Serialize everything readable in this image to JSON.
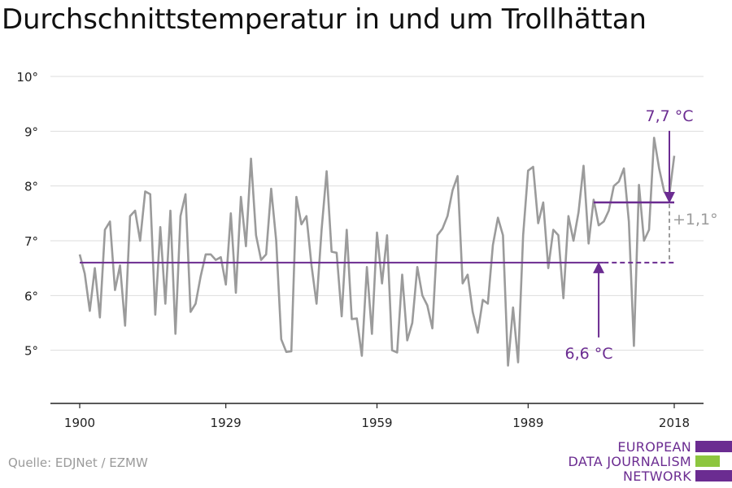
{
  "title": "Durchschnittstemperatur in und um Trollhättan",
  "source": "Quelle: EDJNet / EZMW",
  "logo": {
    "lines": [
      "EUROPEAN",
      "DATA JOURNALISM",
      "NETWORK"
    ],
    "colors": [
      "#6b2c91",
      "#8dc63f",
      "#6b2c91"
    ]
  },
  "colors": {
    "series": "#9b9b9b",
    "accent": "#6b2c91",
    "delta": "#9b9b9b",
    "grid": "#dddddd",
    "axis": "#222222"
  },
  "chart_data": {
    "type": "line",
    "x_tick_labels": [
      "1900",
      "1929",
      "1959",
      "1989",
      "2018"
    ],
    "x_ticks": [
      1900,
      1929,
      1959,
      1989,
      2018
    ],
    "y_tick_labels": [
      "5°",
      "6°",
      "7°",
      "8°",
      "9°",
      "10°"
    ],
    "y_ticks": [
      5,
      6,
      7,
      8,
      9,
      10
    ],
    "xlim": [
      1900,
      2018
    ],
    "ylim": [
      4.0,
      10.0
    ],
    "grid": true,
    "series": [
      {
        "x": [
          1900,
          1901,
          1902,
          1903,
          1904,
          1905,
          1906,
          1907,
          1908,
          1909,
          1910,
          1911,
          1912,
          1913,
          1914,
          1915,
          1916,
          1917,
          1918,
          1919,
          1920,
          1921,
          1922,
          1923,
          1924,
          1925,
          1926,
          1927,
          1928,
          1929,
          1930,
          1931,
          1932,
          1933,
          1934,
          1935,
          1936,
          1937,
          1938,
          1939,
          1940,
          1941,
          1942,
          1943,
          1944,
          1945,
          1946,
          1947,
          1948,
          1949,
          1950,
          1951,
          1952,
          1953,
          1954,
          1955,
          1956,
          1957,
          1958,
          1959,
          1960,
          1961,
          1962,
          1963,
          1964,
          1965,
          1966,
          1967,
          1968,
          1969,
          1970,
          1971,
          1972,
          1973,
          1974,
          1975,
          1976,
          1977,
          1978,
          1979,
          1980,
          1981,
          1982,
          1983,
          1984,
          1985,
          1986,
          1987,
          1988,
          1989,
          1990,
          1991,
          1992,
          1993,
          1994,
          1995,
          1996,
          1997,
          1998,
          1999,
          2000,
          2001,
          2002,
          2003,
          2004,
          2005,
          2006,
          2007,
          2008,
          2009,
          2010,
          2011,
          2012,
          2013,
          2014,
          2015,
          2016,
          2017,
          2018
        ],
        "values": [
          6.75,
          6.4,
          5.72,
          6.5,
          5.6,
          7.2,
          7.35,
          6.1,
          6.55,
          5.45,
          7.45,
          7.55,
          7.0,
          7.9,
          7.85,
          5.65,
          7.25,
          5.85,
          7.55,
          5.3,
          7.45,
          7.85,
          5.7,
          5.85,
          6.35,
          6.75,
          6.75,
          6.65,
          6.7,
          6.2,
          7.5,
          6.05,
          7.8,
          6.9,
          8.5,
          7.1,
          6.65,
          6.75,
          7.95,
          7.0,
          5.2,
          4.97,
          4.98,
          7.8,
          7.3,
          7.45,
          6.55,
          5.85,
          7.2,
          8.27,
          6.8,
          6.78,
          5.62,
          7.2,
          5.57,
          5.58,
          4.9,
          6.52,
          5.3,
          7.15,
          6.22,
          7.1,
          5.0,
          4.96,
          6.38,
          5.18,
          5.5,
          6.52,
          6.0,
          5.82,
          5.4,
          7.1,
          7.22,
          7.45,
          7.92,
          8.18,
          6.22,
          6.38,
          5.7,
          5.32,
          5.92,
          5.85,
          6.92,
          7.42,
          7.1,
          4.72,
          5.78,
          4.78,
          7.1,
          8.28,
          8.35,
          7.32,
          7.7,
          6.5,
          7.2,
          7.1,
          5.95,
          7.45,
          7.0,
          7.52,
          8.37,
          6.95,
          7.75,
          7.28,
          7.35,
          7.55,
          8.0,
          8.08,
          8.32,
          7.35,
          5.08,
          8.02,
          7.0,
          7.2,
          8.88,
          8.32,
          7.9,
          7.82,
          8.55
        ]
      }
    ],
    "baseline": {
      "label": "6,6 °C",
      "value": 6.6,
      "x_start": 1900,
      "x_end": 2004
    },
    "recent": {
      "label": "7,7 °C",
      "value": 7.7,
      "x_start": 2002,
      "x_end": 2018
    },
    "difference": {
      "label": "+1,1°"
    }
  }
}
